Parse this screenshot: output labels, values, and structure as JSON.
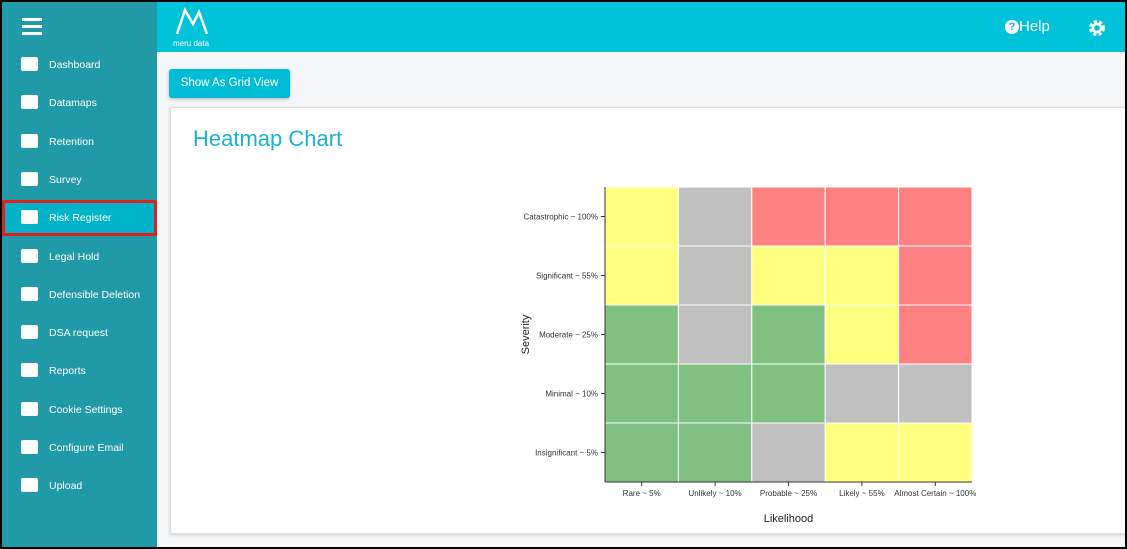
{
  "header": {
    "logo": "meru data",
    "help": "Help"
  },
  "sidebar": {
    "items": [
      "Dashboard",
      "Datamaps",
      "Retention",
      "Survey",
      "Risk Register",
      "Legal Hold",
      "Defensible Deletion",
      "DSA request",
      "Reports",
      "Cookie Settings",
      "Configure Email",
      "Upload"
    ],
    "active": 4
  },
  "button": "Show As Grid View",
  "card": {
    "title": "Heatmap Chart"
  },
  "chart_data": {
    "type": "heatmap",
    "x_label": "Likelihood",
    "y_label": "Severity",
    "categories": [
      "Rare ~ 5%",
      "Unlikely ~ 10%",
      "Probable ~ 25%",
      "Likely ~ 55%",
      "Almost Certain ~ 100%"
    ],
    "y_categories": [
      "Catastrophic ~ 100%",
      "Significant ~ 55%",
      "Moderate ~ 25%",
      "Minimal ~ 10%",
      "Insignificant ~ 5%"
    ],
    "colors": [
      [
        "#ffff80",
        "#c0c0c0",
        "#ff8080",
        "#ff8080",
        "#ff8080"
      ],
      [
        "#ffff80",
        "#c0c0c0",
        "#ffff80",
        "#ffff80",
        "#ff8080"
      ],
      [
        "#80c080",
        "#c0c0c0",
        "#80c080",
        "#ffff80",
        "#ff8080"
      ],
      [
        "#80c080",
        "#80c080",
        "#80c080",
        "#c0c0c0",
        "#c0c0c0"
      ],
      [
        "#80c080",
        "#80c080",
        "#c0c0c0",
        "#ffff80",
        "#ffff80"
      ]
    ]
  }
}
